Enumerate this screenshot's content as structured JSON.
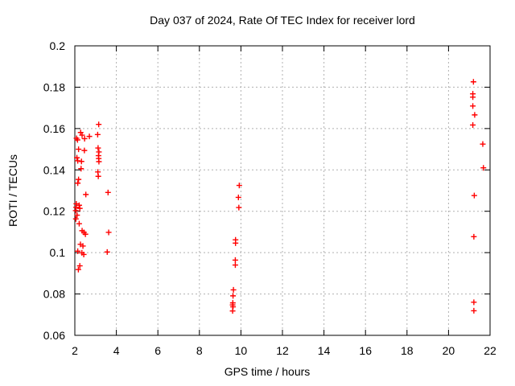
{
  "window": {
    "background": "#ffffff"
  },
  "chart_data": {
    "type": "scatter",
    "title": "Day 037 of 2024, Rate Of TEC Index for receiver lord",
    "xlabel": "GPS time / hours",
    "ylabel": "ROTI / TECUs",
    "xlim": [
      2,
      22
    ],
    "ylim": [
      0.06,
      0.2
    ],
    "xticks": {
      "values": [
        2,
        4,
        6,
        8,
        10,
        12,
        14,
        16,
        18,
        20,
        22
      ],
      "labels": [
        "2",
        "4",
        "6",
        "8",
        "10",
        "12",
        "14",
        "16",
        "18",
        "20",
        "22"
      ]
    },
    "yticks": {
      "values": [
        0.06,
        0.08,
        0.1,
        0.12,
        0.14,
        0.16,
        0.18,
        0.2
      ],
      "labels": [
        "0.06",
        "0.08",
        "0.1",
        "0.12",
        "0.14",
        "0.16",
        "0.18",
        "0.2"
      ]
    },
    "grid": true,
    "legend_position": "none",
    "marker": "plus",
    "colors": {
      "points": "#ff0000",
      "grid": "#b0b0b0",
      "axis": "#000000",
      "text": "#000000"
    },
    "series": [
      {
        "name": "ROTI",
        "points": [
          [
            3.15,
            0.162
          ],
          [
            2.28,
            0.1581
          ],
          [
            2.35,
            0.1568
          ],
          [
            2.08,
            0.1553
          ],
          [
            2.13,
            0.1545
          ],
          [
            2.47,
            0.1551
          ],
          [
            2.7,
            0.1562
          ],
          [
            3.1,
            0.1571
          ],
          [
            2.18,
            0.15
          ],
          [
            2.46,
            0.1494
          ],
          [
            3.12,
            0.1506
          ],
          [
            3.16,
            0.1487
          ],
          [
            3.14,
            0.1469
          ],
          [
            3.15,
            0.1455
          ],
          [
            3.16,
            0.144
          ],
          [
            2.1,
            0.1459
          ],
          [
            2.14,
            0.1444
          ],
          [
            2.32,
            0.1441
          ],
          [
            2.3,
            0.1406
          ],
          [
            3.11,
            0.139
          ],
          [
            3.13,
            0.1369
          ],
          [
            2.18,
            0.1354
          ],
          [
            2.14,
            0.1336
          ],
          [
            2.53,
            0.1281
          ],
          [
            3.6,
            0.1291
          ],
          [
            2.07,
            0.1236
          ],
          [
            2.21,
            0.1229
          ],
          [
            2.06,
            0.1219
          ],
          [
            2.24,
            0.1214
          ],
          [
            2.04,
            0.1203
          ],
          [
            2.11,
            0.1181
          ],
          [
            2.05,
            0.1163
          ],
          [
            2.21,
            0.114
          ],
          [
            2.35,
            0.1106
          ],
          [
            2.44,
            0.1098
          ],
          [
            2.51,
            0.1089
          ],
          [
            3.63,
            0.1098
          ],
          [
            2.27,
            0.104
          ],
          [
            2.39,
            0.1032
          ],
          [
            2.14,
            0.1007
          ],
          [
            2.34,
            0.0999
          ],
          [
            2.43,
            0.0991
          ],
          [
            3.56,
            0.1003
          ],
          [
            2.24,
            0.0936
          ],
          [
            2.17,
            0.0918
          ],
          [
            9.92,
            0.1325
          ],
          [
            9.88,
            0.1267
          ],
          [
            9.9,
            0.1218
          ],
          [
            9.74,
            0.1062
          ],
          [
            9.74,
            0.1046
          ],
          [
            9.73,
            0.0964
          ],
          [
            9.73,
            0.094
          ],
          [
            9.64,
            0.082
          ],
          [
            9.62,
            0.0791
          ],
          [
            9.61,
            0.0757
          ],
          [
            9.6,
            0.0747
          ],
          [
            9.62,
            0.0738
          ],
          [
            9.6,
            0.0718
          ],
          [
            21.2,
            0.1826
          ],
          [
            21.17,
            0.1768
          ],
          [
            21.17,
            0.1752
          ],
          [
            21.17,
            0.1709
          ],
          [
            21.26,
            0.1666
          ],
          [
            21.17,
            0.1617
          ],
          [
            21.65,
            0.1525
          ],
          [
            21.68,
            0.141
          ],
          [
            21.24,
            0.1276
          ],
          [
            21.22,
            0.1077
          ],
          [
            21.22,
            0.076
          ],
          [
            21.22,
            0.0719
          ]
        ]
      }
    ]
  }
}
